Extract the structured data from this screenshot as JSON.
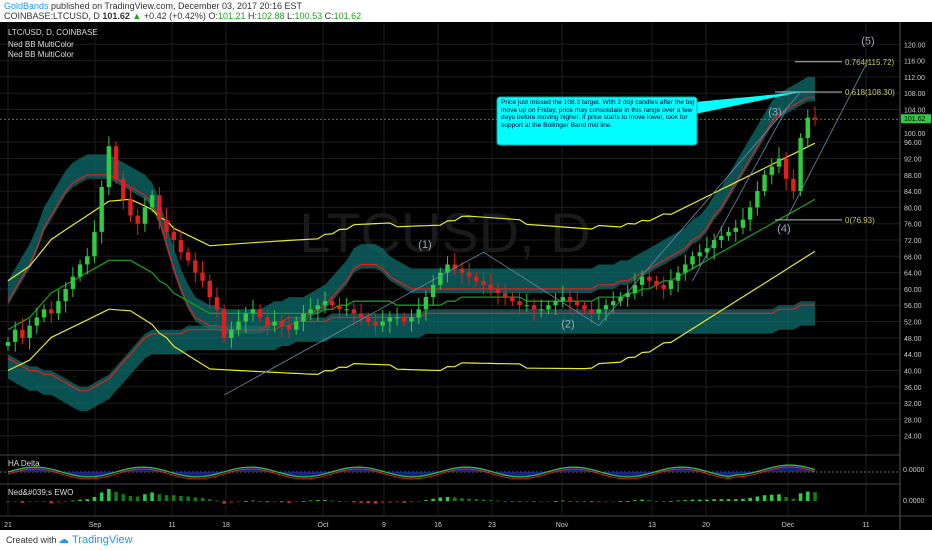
{
  "header": {
    "author": "GoldBands",
    "published_text": "published on TradingView.com, December 03, 2017 20:16 EST",
    "symbol": "COINBASE:LTCUSD, D",
    "last": "101.62",
    "change": "+0.42 (+0.42%)",
    "o_label": "O:",
    "o_value": "101.21",
    "h_label": "H:",
    "h_value": "102.88",
    "l_label": "L:",
    "l_value": "100.53",
    "c_label": "C:",
    "c_value": "101.62"
  },
  "legend": {
    "title": "LTC/USD, D, COINBASE",
    "ind1": "Ned BB MultiColor",
    "ind2": "Ned BB MultiColor"
  },
  "watermark": "LTCUSD, D",
  "annotation": "Price just missed the 108.3 target. With 2 doji candles after the big move up on Friday, price may consolidate in this range over a few days before moving higher. If price starts to move lower, look for support at the Bollinger Band mid line.",
  "waves": [
    "(1)",
    "(2)",
    "(3)",
    "(4)",
    "(5)"
  ],
  "fib": [
    {
      "label": "0.764(115.72)",
      "value": 115.72
    },
    {
      "label": "0.618(108.30)",
      "value": 108.3
    },
    {
      "label": "0(76.93)",
      "value": 76.93
    }
  ],
  "price_badges": [
    "101.62",
    "100.00"
  ],
  "subpanels": {
    "ha_label": "HA Delta",
    "ha_zero": "0.0000",
    "ewo_label": "Ned&#039;s EWO",
    "ewo_zero": "0.0000"
  },
  "footer": {
    "created": "Created with",
    "tv": "TradingView"
  },
  "chart_data": {
    "type": "candlestick",
    "ylim": [
      20,
      124
    ],
    "y_ticks": [
      "24.00",
      "28.00",
      "32.00",
      "36.00",
      "40.00",
      "44.00",
      "48.00",
      "52.00",
      "56.00",
      "60.00",
      "64.00",
      "68.00",
      "72.00",
      "76.00",
      "80.00",
      "84.00",
      "88.00",
      "92.00",
      "96.00",
      "104.00",
      "108.00",
      "112.00",
      "116.00",
      "120.00"
    ],
    "x_ticks": [
      "21",
      "Sep",
      "11",
      "18",
      "Oct",
      "9",
      "16",
      "23",
      "Nov",
      "13",
      "20",
      "Dec",
      "11"
    ],
    "close": [
      47,
      50,
      48,
      51,
      53,
      55,
      54,
      57,
      60,
      63,
      66,
      68,
      74,
      85,
      95,
      87,
      82,
      78,
      76,
      80,
      83,
      77,
      74,
      72,
      69,
      67,
      64,
      62,
      58,
      55,
      48,
      50,
      52,
      54,
      55,
      53,
      51,
      52,
      51,
      50,
      52,
      54,
      55,
      56,
      57,
      56,
      55,
      55,
      54,
      53,
      52,
      51,
      52,
      53,
      53,
      52,
      53,
      55,
      58,
      61,
      64,
      66,
      65,
      64,
      63,
      62,
      61,
      60,
      59,
      58,
      57,
      56,
      56,
      55,
      55,
      56,
      57,
      58,
      57,
      56,
      55,
      54,
      55,
      56,
      57,
      58,
      59,
      61,
      63,
      62,
      61,
      60,
      62,
      64,
      66,
      68,
      69,
      70,
      72,
      73,
      74,
      75,
      77,
      80,
      84,
      88,
      90,
      92,
      87,
      84,
      97,
      102,
      101.62
    ],
    "bb_upper": [
      59,
      62,
      65,
      68,
      72,
      77,
      80,
      83,
      86,
      88,
      89,
      90,
      90,
      90,
      90,
      89,
      88,
      87,
      86,
      85,
      83,
      79,
      73,
      67,
      62,
      58,
      55,
      54,
      53,
      53,
      52,
      52,
      52,
      52,
      52,
      52,
      53,
      54,
      54,
      55,
      55,
      55,
      56,
      57,
      58,
      60,
      62,
      64,
      67,
      68,
      68,
      68,
      67,
      65,
      64,
      63,
      62,
      62,
      62,
      62,
      62,
      62,
      62,
      62,
      62,
      62,
      62,
      62,
      62,
      62,
      62,
      62,
      62,
      62,
      62,
      62,
      62,
      62,
      62,
      62,
      62,
      62,
      63,
      63,
      63,
      64,
      64,
      65,
      66,
      67,
      68,
      69,
      70,
      71,
      72,
      74,
      75,
      77,
      80,
      82,
      85,
      88,
      91,
      94,
      97,
      100,
      103,
      105,
      106,
      107,
      108,
      109,
      109
    ],
    "bb_mid": [
      50,
      51,
      52,
      53,
      55,
      57,
      59,
      60,
      61,
      62,
      63,
      64,
      65,
      66,
      67,
      67,
      67,
      67,
      66,
      65,
      64,
      62,
      61,
      59,
      58,
      57,
      56,
      55,
      54,
      54,
      54,
      54,
      54,
      54,
      54,
      54,
      54,
      54,
      54,
      54,
      54,
      54,
      54,
      54,
      55,
      55,
      56,
      56,
      57,
      57,
      57,
      57,
      57,
      57,
      56,
      56,
      56,
      56,
      56,
      56,
      56,
      57,
      57,
      58,
      58,
      58,
      58,
      58,
      58,
      58,
      58,
      58,
      57,
      57,
      57,
      57,
      57,
      57,
      57,
      57,
      57,
      57,
      58,
      58,
      58,
      58,
      59,
      59,
      60,
      60,
      61,
      62,
      62,
      63,
      64,
      65,
      66,
      67,
      68,
      69,
      70,
      71,
      72,
      73,
      74,
      75,
      76,
      77,
      78,
      79,
      80,
      81,
      82
    ],
    "bb_lower": [
      41,
      40,
      39,
      38,
      38,
      37,
      37,
      36,
      35,
      34,
      33,
      33,
      34,
      35,
      36,
      38,
      40,
      42,
      44,
      46,
      47,
      47,
      47,
      47,
      47,
      48,
      48,
      48,
      48,
      48,
      48,
      48,
      48,
      48,
      48,
      48,
      48,
      48,
      49,
      49,
      50,
      50,
      50,
      50,
      50,
      51,
      51,
      51,
      51,
      51,
      51,
      51,
      51,
      51,
      51,
      51,
      51,
      51,
      52,
      52,
      52,
      52,
      52,
      52,
      52,
      52,
      52,
      52,
      52,
      52,
      52,
      52,
      52,
      52,
      52,
      52,
      52,
      52,
      52,
      52,
      52,
      52,
      52,
      52,
      52,
      52,
      52,
      52,
      52,
      52,
      52,
      52,
      52,
      52,
      52,
      52,
      52,
      52,
      52,
      52,
      52,
      52,
      52,
      52,
      52,
      52,
      52,
      53,
      53,
      53,
      54,
      54,
      54
    ]
  }
}
